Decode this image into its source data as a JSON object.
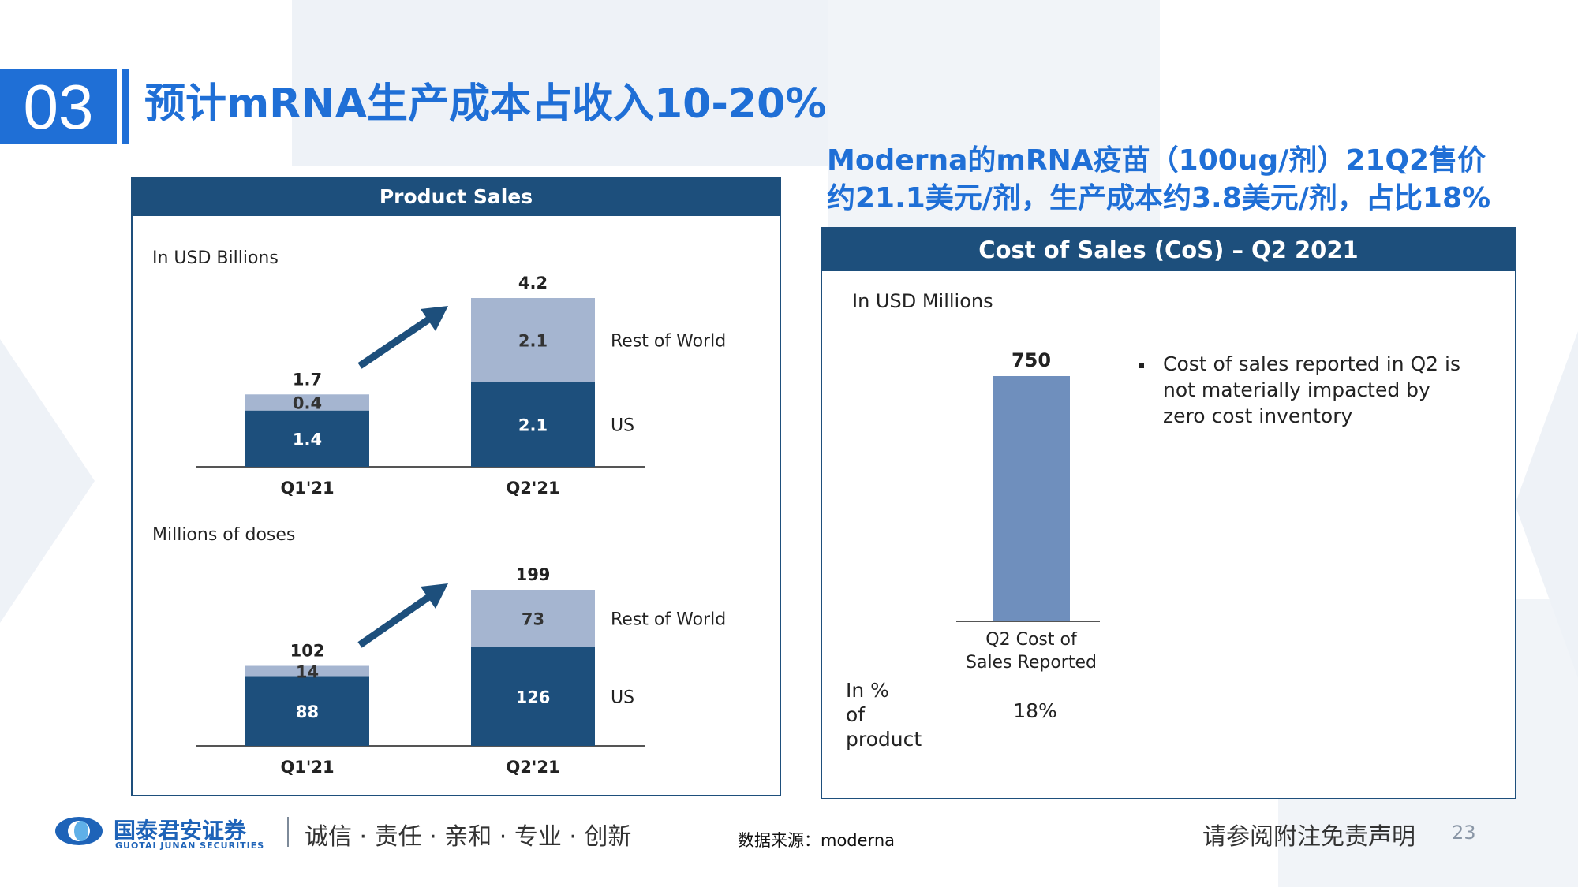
{
  "header": {
    "section_number": "03",
    "title": "预计mRNA生产成本占收入10-20%",
    "subtitle_line1": "Moderna的mRNA疫苗（100ug/剂）21Q2售价",
    "subtitle_line2": "约21.1美元/剂，生产成本约3.8美元/剂，占比18%"
  },
  "left_panel": {
    "title": "Product Sales",
    "chart1_unit": "In USD Billions",
    "chart2_unit": "Millions of doses"
  },
  "right_panel": {
    "title": "Cost of Sales (CoS) – Q2 2021",
    "unit": "In USD Millions",
    "bullet": "Cost of sales reported in Q2 is not materially impacted by zero cost inventory",
    "pct_label": "In % of product sales",
    "pct_value": "18%"
  },
  "colors": {
    "brand_blue": "#1f6fd6",
    "us_bar": "#1d4f7c",
    "row_bar": "#a5b5d0",
    "cos_bar": "#6f8fbd"
  },
  "chart_data": [
    {
      "type": "bar",
      "stacked": true,
      "ylabel": "In USD Billions",
      "categories": [
        "Q1'21",
        "Q2'21"
      ],
      "series": [
        {
          "name": "US",
          "values": [
            1.4,
            2.1
          ]
        },
        {
          "name": "Rest of World",
          "values": [
            0.4,
            2.1
          ]
        }
      ],
      "totals": [
        1.7,
        4.2
      ],
      "ylim": [
        0,
        4.2
      ]
    },
    {
      "type": "bar",
      "stacked": true,
      "ylabel": "Millions of doses",
      "categories": [
        "Q1'21",
        "Q2'21"
      ],
      "series": [
        {
          "name": "US",
          "values": [
            88,
            126
          ]
        },
        {
          "name": "Rest of World",
          "values": [
            14,
            73
          ]
        }
      ],
      "totals": [
        102,
        199
      ],
      "ylim": [
        0,
        199
      ]
    },
    {
      "type": "bar",
      "ylabel": "In USD Millions",
      "categories": [
        "Q2 Cost of Sales Reported"
      ],
      "values": [
        750
      ],
      "ylim": [
        0,
        750
      ]
    }
  ],
  "footer": {
    "brand_cn": "国泰君安证券",
    "brand_en": "GUOTAI JUNAN SECURITIES",
    "slogan": "诚信 · 责任 · 亲和 · 专业 · 创新",
    "source": "数据来源：moderna",
    "disclaimer": "请参阅附注免责声明",
    "page_number": "23"
  }
}
